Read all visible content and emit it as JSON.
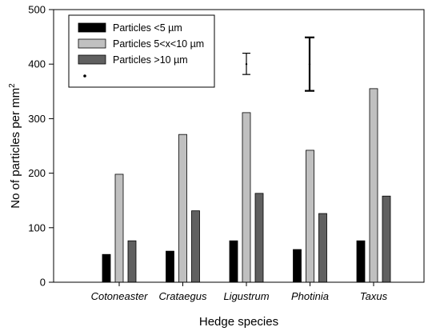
{
  "chart_data": {
    "type": "bar",
    "categories": [
      "Cotoneaster",
      "Crataegus",
      "Ligustrum",
      "Photinia",
      "Taxus"
    ],
    "series": [
      {
        "name": "Particles <5 µm",
        "color": "#000000",
        "values": [
          51,
          57,
          76,
          60,
          76
        ]
      },
      {
        "name": "Particles 5<x<10 µm",
        "color": "#c0c0c0",
        "values": [
          198,
          271,
          311,
          242,
          355
        ]
      },
      {
        "name": "Particles >10 µm",
        "color": "#606060",
        "values": [
          76,
          131,
          163,
          126,
          158
        ]
      }
    ],
    "legend_extra_marker": "point",
    "error_bars": [
      {
        "center": 400,
        "low": 381,
        "high": 420,
        "style": "thin"
      },
      {
        "center": 400,
        "low": 351,
        "high": 449,
        "style": "thick"
      }
    ],
    "xlabel": "Hedge species",
    "ylabel_main": "No of particles per mm",
    "ylabel_sup": "2",
    "ylim": [
      0,
      500
    ],
    "yticks": [
      0,
      100,
      200,
      300,
      400,
      500
    ],
    "grid": false,
    "legend_position": "top-left"
  }
}
